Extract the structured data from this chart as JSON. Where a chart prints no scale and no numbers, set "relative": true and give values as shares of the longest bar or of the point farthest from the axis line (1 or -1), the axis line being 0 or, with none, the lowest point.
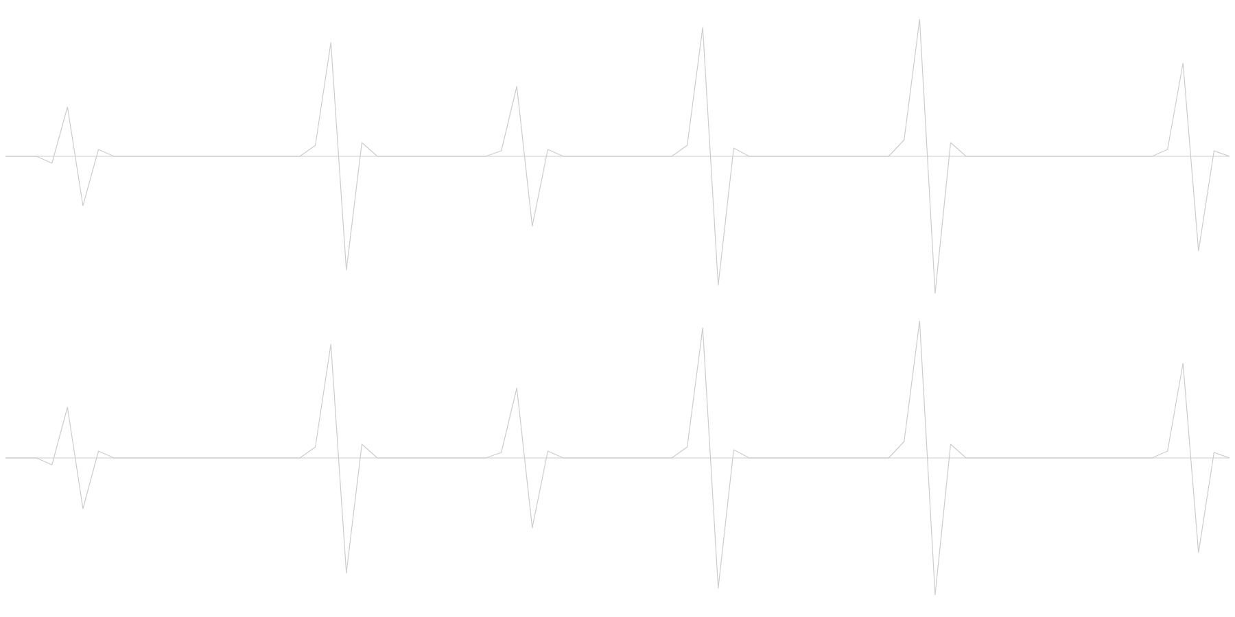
{
  "chart_data": [
    {
      "type": "line",
      "relative": true,
      "tick_labels": false,
      "categories": [
        null,
        null,
        null,
        null,
        null,
        null,
        null,
        null,
        null,
        null,
        null,
        null,
        null,
        null,
        null,
        null,
        null,
        null,
        null,
        null,
        null,
        null,
        null,
        null,
        null,
        null,
        null,
        null,
        null,
        null,
        null,
        null,
        null,
        null,
        null,
        null,
        null,
        null,
        null,
        null,
        null,
        null,
        null,
        null,
        null,
        null,
        null,
        null,
        null,
        null,
        null,
        null,
        null,
        null,
        null,
        null,
        null,
        null,
        null,
        null,
        null,
        null,
        null,
        null,
        null,
        null,
        null,
        null,
        null,
        null,
        null,
        null,
        null,
        null,
        null,
        null,
        null,
        null,
        null,
        null
      ],
      "series": [
        {
          "color": "#cccccc",
          "values": [
            0,
            0,
            0,
            -0.05,
            0.36,
            -0.36,
            0.05,
            0,
            0,
            0,
            0,
            0,
            0,
            0,
            0,
            0,
            0,
            0,
            0,
            0,
            0.08,
            0.83,
            -0.83,
            0.1,
            0,
            0,
            0,
            0,
            0,
            0,
            0,
            0,
            0.04,
            0.51,
            -0.51,
            0.05,
            0,
            0,
            0,
            0,
            0,
            0,
            0,
            0,
            0.08,
            0.94,
            -0.94,
            0.06,
            0,
            0,
            0,
            0,
            0,
            0,
            0,
            0,
            0,
            0,
            0.12,
            1,
            -1,
            0.1,
            0,
            0,
            0,
            0,
            0,
            0,
            0,
            0,
            0,
            0,
            0,
            0,
            0,
            0.05,
            0.68,
            -0.69,
            0.04,
            0
          ]
        }
      ]
    },
    {
      "type": "line",
      "relative": true,
      "tick_labels": false,
      "categories": [
        null,
        null,
        null,
        null,
        null,
        null,
        null,
        null,
        null,
        null,
        null,
        null,
        null,
        null,
        null,
        null,
        null,
        null,
        null,
        null,
        null,
        null,
        null,
        null,
        null,
        null,
        null,
        null,
        null,
        null,
        null,
        null,
        null,
        null,
        null,
        null,
        null,
        null,
        null,
        null,
        null,
        null,
        null,
        null,
        null,
        null,
        null,
        null,
        null,
        null,
        null,
        null,
        null,
        null,
        null,
        null,
        null,
        null,
        null,
        null,
        null,
        null,
        null,
        null,
        null,
        null,
        null,
        null,
        null,
        null,
        null,
        null,
        null,
        null,
        null,
        null,
        null,
        null,
        null,
        null
      ],
      "series": [
        {
          "color": "#cccccc",
          "values": [
            0,
            0,
            0,
            -0.05,
            0.37,
            -0.37,
            0.05,
            0,
            0,
            0,
            0,
            0,
            0,
            0,
            0,
            0,
            0,
            0,
            0,
            0,
            0.08,
            0.83,
            -0.84,
            0.1,
            0,
            0,
            0,
            0,
            0,
            0,
            0,
            0,
            0.04,
            0.51,
            -0.51,
            0.05,
            0,
            0,
            0,
            0,
            0,
            0,
            0,
            0,
            0.08,
            0.95,
            -0.95,
            0.06,
            0,
            0,
            0,
            0,
            0,
            0,
            0,
            0,
            0,
            0,
            0.12,
            1,
            -1,
            0.1,
            0,
            0,
            0,
            0,
            0,
            0,
            0,
            0,
            0,
            0,
            0,
            0,
            0,
            0.05,
            0.69,
            -0.69,
            0.04,
            0
          ]
        }
      ]
    }
  ]
}
